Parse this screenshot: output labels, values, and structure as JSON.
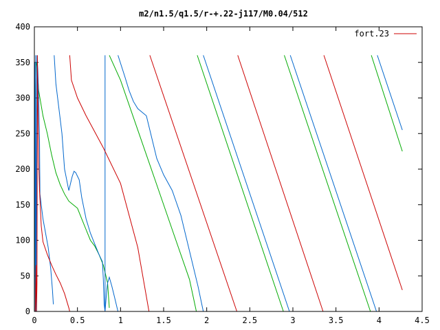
{
  "chart_data": {
    "type": "line",
    "title": "m2/n1.5/q1.5/r-+.22-j117/M0.04/512",
    "xlabel": "",
    "ylabel": "",
    "xlim": [
      0,
      4.5
    ],
    "ylim": [
      0,
      400
    ],
    "x_ticks": [
      "0",
      "0.5",
      "1",
      "1.5",
      "2",
      "2.5",
      "3",
      "3.5",
      "4",
      "4.5"
    ],
    "y_ticks": [
      "0",
      "50",
      "100",
      "150",
      "200",
      "250",
      "300",
      "350",
      "400"
    ],
    "grid": false,
    "legend_position": "top-right",
    "legend": [
      {
        "label": "fort.23",
        "color": "#cc0000"
      }
    ],
    "series": [
      {
        "name": "fort.23",
        "color": "#cc0000",
        "points": [
          [
            0.01,
            0
          ],
          [
            0.02,
            65
          ],
          [
            0.025,
            0
          ],
          [
            0.03,
            40
          ],
          [
            0.035,
            360
          ],
          [
            0.04,
            300
          ],
          [
            0.05,
            210
          ],
          [
            0.06,
            170
          ],
          [
            0.08,
            120
          ],
          [
            0.1,
            98
          ],
          [
            0.15,
            80
          ],
          [
            0.2,
            65
          ],
          [
            0.25,
            52
          ],
          [
            0.3,
            40
          ],
          [
            0.35,
            25
          ],
          [
            0.4,
            5
          ],
          [
            0.41,
            0
          ],
          null,
          [
            0.41,
            360
          ],
          [
            0.43,
            325
          ],
          [
            0.5,
            300
          ],
          [
            0.6,
            275
          ],
          [
            0.8,
            230
          ],
          [
            1.0,
            180
          ],
          [
            1.2,
            90
          ],
          [
            1.33,
            0
          ],
          null,
          [
            1.34,
            360
          ],
          [
            2.35,
            0
          ],
          null,
          [
            2.36,
            360
          ],
          [
            3.35,
            0
          ],
          null,
          [
            3.36,
            360
          ],
          [
            4.27,
            30
          ]
        ]
      },
      {
        "color": "#0066cc",
        "points": [
          [
            0.005,
            350
          ],
          [
            0.01,
            0
          ],
          [
            0.015,
            360
          ],
          [
            0.02,
            0
          ],
          [
            0.03,
            360
          ],
          [
            0.04,
            340
          ],
          [
            0.05,
            300
          ],
          [
            0.06,
            240
          ],
          [
            0.065,
            165
          ],
          [
            0.08,
            150
          ],
          [
            0.1,
            130
          ],
          [
            0.13,
            110
          ],
          [
            0.16,
            90
          ],
          [
            0.19,
            60
          ],
          [
            0.21,
            30
          ],
          [
            0.22,
            10
          ],
          null,
          [
            0.23,
            360
          ],
          [
            0.25,
            320
          ],
          [
            0.28,
            290
          ],
          [
            0.3,
            270
          ],
          [
            0.32,
            250
          ],
          [
            0.35,
            200
          ],
          [
            0.4,
            170
          ],
          [
            0.42,
            180
          ],
          [
            0.44,
            190
          ],
          [
            0.46,
            197
          ],
          [
            0.48,
            195
          ],
          [
            0.5,
            190
          ],
          [
            0.52,
            185
          ],
          [
            0.55,
            160
          ],
          [
            0.6,
            130
          ],
          [
            0.65,
            110
          ],
          [
            0.7,
            95
          ],
          [
            0.75,
            80
          ],
          [
            0.79,
            70
          ],
          [
            0.8,
            45
          ],
          [
            0.81,
            10
          ],
          [
            0.82,
            0
          ],
          null,
          [
            0.82,
            360
          ],
          [
            0.82,
            0
          ],
          [
            0.84,
            30
          ],
          [
            0.85,
            40
          ],
          [
            0.87,
            48
          ],
          [
            0.9,
            35
          ],
          [
            0.93,
            20
          ],
          [
            0.96,
            5
          ],
          [
            0.97,
            0
          ],
          null,
          [
            0.97,
            360
          ],
          [
            1.05,
            330
          ],
          [
            1.1,
            310
          ],
          [
            1.15,
            295
          ],
          [
            1.2,
            285
          ],
          [
            1.25,
            280
          ],
          [
            1.3,
            275
          ],
          [
            1.35,
            250
          ],
          [
            1.42,
            215
          ],
          [
            1.5,
            192
          ],
          [
            1.6,
            170
          ],
          [
            1.7,
            135
          ],
          [
            1.8,
            85
          ],
          [
            1.9,
            35
          ],
          [
            1.96,
            0
          ],
          null,
          [
            1.96,
            360
          ],
          [
            2.96,
            0
          ],
          null,
          [
            2.97,
            360
          ],
          [
            3.97,
            0
          ],
          null,
          [
            3.98,
            360
          ],
          [
            4.27,
            255
          ]
        ]
      },
      {
        "color": "#00aa00",
        "points": [
          [
            0.0,
            0
          ],
          [
            0.01,
            300
          ],
          [
            0.02,
            350
          ],
          [
            0.03,
            345
          ],
          [
            0.05,
            310
          ],
          [
            0.1,
            275
          ],
          [
            0.15,
            250
          ],
          [
            0.2,
            220
          ],
          [
            0.25,
            195
          ],
          [
            0.3,
            178
          ],
          [
            0.35,
            165
          ],
          [
            0.4,
            155
          ],
          [
            0.45,
            150
          ],
          [
            0.5,
            145
          ],
          [
            0.55,
            130
          ],
          [
            0.6,
            115
          ],
          [
            0.65,
            100
          ],
          [
            0.7,
            92
          ],
          [
            0.75,
            80
          ],
          [
            0.8,
            65
          ],
          [
            0.85,
            40
          ],
          [
            0.87,
            5
          ],
          null,
          [
            0.87,
            360
          ],
          [
            1.0,
            325
          ],
          [
            1.2,
            255
          ],
          [
            1.4,
            185
          ],
          [
            1.6,
            115
          ],
          [
            1.8,
            45
          ],
          [
            1.88,
            0
          ],
          null,
          [
            1.89,
            360
          ],
          [
            2.89,
            0
          ],
          null,
          [
            2.9,
            360
          ],
          [
            3.9,
            0
          ],
          null,
          [
            3.91,
            360
          ],
          [
            4.27,
            225
          ]
        ]
      }
    ]
  }
}
